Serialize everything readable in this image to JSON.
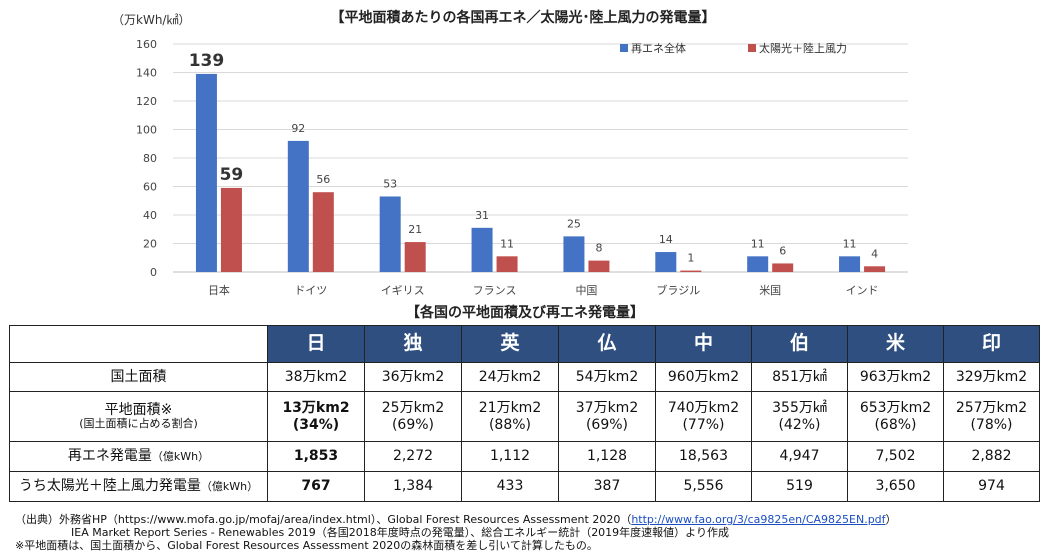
{
  "chart_data": {
    "type": "bar",
    "title": "【平地面積あたりの各国再エネ／太陽光･陸上風力の発電量】",
    "ylabel": "（万kWh/㎢）",
    "ylim": [
      0,
      160
    ],
    "yticks": [
      0,
      20,
      40,
      60,
      80,
      100,
      120,
      140,
      160
    ],
    "categories": [
      "日本",
      "ドイツ",
      "イギリス",
      "フランス",
      "中国",
      "ブラジル",
      "米国",
      "インド"
    ],
    "legend_position": "top-right",
    "grid": true,
    "series": [
      {
        "name": "再エネ全体",
        "color": "#4472c4",
        "values": [
          139,
          92,
          53,
          31,
          25,
          14,
          11,
          11
        ]
      },
      {
        "name": "太陽光＋陸上風力",
        "color": "#c0504d",
        "values": [
          59,
          56,
          21,
          11,
          8,
          1,
          6,
          4
        ]
      }
    ]
  },
  "table": {
    "title": "【各国の平地面積及び再エネ発電量】",
    "headers": [
      "日",
      "独",
      "英",
      "仏",
      "中",
      "伯",
      "米",
      "印"
    ],
    "rows": {
      "land_area": {
        "label": "国土面積",
        "values": [
          "38万km2",
          "36万km2",
          "24万km2",
          "54万km2",
          "960万km2",
          "851万㎢",
          "963万km2",
          "329万km2"
        ]
      },
      "flat_area": {
        "label": "平地面積※",
        "sublabel": "(国土面積に占める割合)",
        "values": [
          "13万km2",
          "25万km2",
          "21万km2",
          "37万km2",
          "740万km2",
          "355万㎢",
          "653万km2",
          "257万km2"
        ],
        "shares": [
          "(34%)",
          "(69%)",
          "(88%)",
          "(69%)",
          "(77%)",
          "(42%)",
          "(68%)",
          "(78%)"
        ]
      },
      "renewable_gen": {
        "label": "再エネ発電量",
        "unit": "（億kWh）",
        "values": [
          "1,853",
          "2,272",
          "1,112",
          "1,128",
          "18,563",
          "4,947",
          "7,502",
          "2,882"
        ]
      },
      "solar_wind_gen": {
        "label": "うち太陽光＋陸上風力発電量",
        "unit": "（億kWh）",
        "values": [
          "767",
          "1,384",
          "433",
          "387",
          "5,556",
          "519",
          "3,650",
          "974"
        ]
      }
    }
  },
  "footnotes": {
    "line1_prefix": "（出典）外務省HP（https://www.mofa.go.jp/mofaj/area/index.html）、Global Forest Resources Assessment 2020（",
    "line1_link": "http://www.fao.org/3/ca9825en/CA9825EN.pdf",
    "line1_suffix": "）",
    "line2": "IEA Market Report Series - Renewables 2019（各国2018年度時点の発電量）、総合エネルギー統計（2019年度速報値）より作成",
    "line3": "※平地面積は、国土面積から、Global Forest Resources Assessment 2020の森林面積を差し引いて計算したもの。"
  }
}
